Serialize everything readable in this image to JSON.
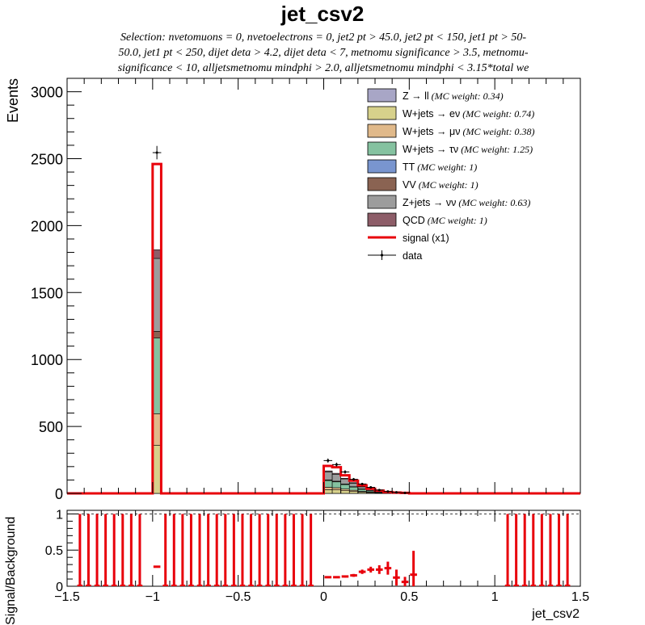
{
  "title": "jet_csv2",
  "selection_lines": [
    "Selection: nvetomuons = 0, nvetoelectrons = 0, jet2 pt > 45.0, jet2 pt < 150, jet1 pt > 50-",
    "50.0, jet1 pt < 250, dijet deta > 4.2, dijet deta < 7, metnomu significance > 3.5, metnomu-",
    "significance < 10, alljetsmetnomu mindphi > 2.0, alljetsmetnomu mindphi < 3.15*total we"
  ],
  "colors": {
    "signal": "#e8000b",
    "data": "#000000",
    "Zll": "#a8a6c6",
    "Wenu": "#d7d18b",
    "Wmunu": "#e0b98a",
    "Wtaunu": "#85c2a0",
    "TT": "#7995cf",
    "VV": "#8a6352",
    "Znunu": "#9c9c9c",
    "QCD": "#8d5d68"
  },
  "chart_data": [
    {
      "type": "bar",
      "stacked": true,
      "xlabel": "jet_csv2",
      "ylabel": "Events",
      "xlim": [
        -1.5,
        1.5
      ],
      "ylim": [
        0,
        3100
      ],
      "x_ticks": [
        "−1.5",
        "−1",
        "−0.5",
        "0",
        "0.5",
        "1",
        "1.5"
      ],
      "y_ticks": [
        "0",
        "500",
        "1000",
        "1500",
        "2000",
        "2500",
        "3000"
      ],
      "bin_width": 0.05,
      "legend_position": "top-right",
      "legend": [
        {
          "key": "Zll",
          "label": "Z → ll",
          "note": "(MC weight: 0.34)",
          "kind": "fill"
        },
        {
          "key": "Wenu",
          "label": "W+jets → eν",
          "note": "(MC weight: 0.74)",
          "kind": "fill"
        },
        {
          "key": "Wmunu",
          "label": "W+jets → μν",
          "note": "(MC weight: 0.38)",
          "kind": "fill"
        },
        {
          "key": "Wtaunu",
          "label": "W+jets → τν",
          "note": "(MC weight: 1.25)",
          "kind": "fill"
        },
        {
          "key": "TT",
          "label": "TT",
          "note": "(MC weight: 1)",
          "kind": "fill"
        },
        {
          "key": "VV",
          "label": "VV",
          "note": "(MC weight: 1)",
          "kind": "fill"
        },
        {
          "key": "Znunu",
          "label": "Z+jets → νν",
          "note": "(MC weight: 0.63)",
          "kind": "fill"
        },
        {
          "key": "QCD",
          "label": "QCD",
          "note": "(MC weight: 1)",
          "kind": "fill"
        },
        {
          "key": "signal",
          "label": "signal (x1)",
          "note": "",
          "kind": "line"
        },
        {
          "key": "data",
          "label": "data",
          "note": "",
          "kind": "marker"
        }
      ],
      "stack_order": [
        "Zll",
        "Wenu",
        "Wmunu",
        "Wtaunu",
        "TT",
        "VV",
        "Znunu",
        "QCD"
      ],
      "stack_bins": [
        {
          "x0": -1.0,
          "Zll": 0,
          "Wenu": 360,
          "Wmunu": 235,
          "Wtaunu": 565,
          "TT": 0,
          "VV": 50,
          "Znunu": 545,
          "QCD": 65
        },
        {
          "x0": 0.0,
          "Zll": 0,
          "Wenu": 28,
          "Wmunu": 18,
          "Wtaunu": 50,
          "TT": 0,
          "VV": 5,
          "Znunu": 60,
          "QCD": 7
        },
        {
          "x0": 0.05,
          "Zll": 0,
          "Wenu": 26,
          "Wmunu": 16,
          "Wtaunu": 44,
          "TT": 0,
          "VV": 5,
          "Znunu": 52,
          "QCD": 7
        },
        {
          "x0": 0.1,
          "Zll": 0,
          "Wenu": 20,
          "Wmunu": 12,
          "Wtaunu": 34,
          "TT": 0,
          "VV": 4,
          "Znunu": 38,
          "QCD": 5
        },
        {
          "x0": 0.15,
          "Zll": 0,
          "Wenu": 14,
          "Wmunu": 9,
          "Wtaunu": 24,
          "TT": 0,
          "VV": 3,
          "Znunu": 26,
          "QCD": 4
        },
        {
          "x0": 0.2,
          "Zll": 0,
          "Wenu": 9,
          "Wmunu": 6,
          "Wtaunu": 16,
          "TT": 0,
          "VV": 2,
          "Znunu": 16,
          "QCD": 3
        },
        {
          "x0": 0.25,
          "Zll": 0,
          "Wenu": 6,
          "Wmunu": 4,
          "Wtaunu": 10,
          "TT": 0,
          "VV": 1,
          "Znunu": 10,
          "QCD": 2
        },
        {
          "x0": 0.3,
          "Zll": 0,
          "Wenu": 4,
          "Wmunu": 2,
          "Wtaunu": 6,
          "TT": 0,
          "VV": 1,
          "Znunu": 6,
          "QCD": 1
        },
        {
          "x0": 0.35,
          "Zll": 0,
          "Wenu": 2,
          "Wmunu": 1,
          "Wtaunu": 3,
          "TT": 0,
          "VV": 0,
          "Znunu": 3,
          "QCD": 1
        },
        {
          "x0": 0.4,
          "Zll": 0,
          "Wenu": 1,
          "Wmunu": 1,
          "Wtaunu": 2,
          "TT": 0,
          "VV": 0,
          "Znunu": 2,
          "QCD": 0
        },
        {
          "x0": 0.45,
          "Zll": 0,
          "Wenu": 1,
          "Wmunu": 0,
          "Wtaunu": 1,
          "TT": 0,
          "VV": 0,
          "Znunu": 1,
          "QCD": 0
        }
      ],
      "signal_bins": [
        {
          "x0": -1.0,
          "value": 2460
        },
        {
          "x0": 0.0,
          "value": 205
        },
        {
          "x0": 0.05,
          "value": 195
        },
        {
          "x0": 0.1,
          "value": 135
        },
        {
          "x0": 0.15,
          "value": 95
        },
        {
          "x0": 0.2,
          "value": 60
        },
        {
          "x0": 0.25,
          "value": 35
        },
        {
          "x0": 0.3,
          "value": 20
        },
        {
          "x0": 0.35,
          "value": 10
        },
        {
          "x0": 0.4,
          "value": 6
        },
        {
          "x0": 0.45,
          "value": 4
        }
      ],
      "data_points": [
        {
          "x": -0.975,
          "y": 2545,
          "err": 50
        },
        {
          "x": 0.025,
          "y": 245,
          "err": 16
        },
        {
          "x": 0.075,
          "y": 215,
          "err": 15
        },
        {
          "x": 0.125,
          "y": 160,
          "err": 13
        },
        {
          "x": 0.175,
          "y": 105,
          "err": 10
        },
        {
          "x": 0.225,
          "y": 70,
          "err": 8
        },
        {
          "x": 0.275,
          "y": 45,
          "err": 7
        },
        {
          "x": 0.325,
          "y": 25,
          "err": 5
        },
        {
          "x": 0.375,
          "y": 14,
          "err": 4
        },
        {
          "x": 0.425,
          "y": 8,
          "err": 3
        },
        {
          "x": 0.475,
          "y": 4,
          "err": 2
        }
      ]
    },
    {
      "type": "scatter",
      "ylabel": "Signal/Background",
      "xlabel": "jet_csv2",
      "xlim": [
        -1.5,
        1.5
      ],
      "ylim": [
        0,
        1.05
      ],
      "x_ticks": [
        "−1.5",
        "−1",
        "−0.5",
        "0",
        "0.5",
        "1",
        "1.5"
      ],
      "y_ticks": [
        "0",
        "0.5",
        "1"
      ],
      "reference_line": 1,
      "full_error_bins_x0": [
        -1.45,
        -1.4,
        -1.35,
        -1.3,
        -1.25,
        -1.2,
        -1.15,
        -1.1,
        -0.95,
        -0.9,
        -0.85,
        -0.8,
        -0.75,
        -0.7,
        -0.65,
        -0.6,
        -0.55,
        -0.5,
        -0.45,
        -0.4,
        -0.35,
        -0.3,
        -0.25,
        -0.2,
        -0.15,
        -0.1,
        1.05,
        1.1,
        1.15,
        1.2,
        1.25,
        1.3,
        1.35,
        1.4
      ],
      "ratio_points": [
        {
          "x": -0.975,
          "y": 0.27,
          "err": 0.005
        },
        {
          "x": 0.025,
          "y": 0.125,
          "err": 0.01
        },
        {
          "x": 0.075,
          "y": 0.125,
          "err": 0.01
        },
        {
          "x": 0.125,
          "y": 0.135,
          "err": 0.015
        },
        {
          "x": 0.175,
          "y": 0.15,
          "err": 0.02
        },
        {
          "x": 0.225,
          "y": 0.2,
          "err": 0.03
        },
        {
          "x": 0.275,
          "y": 0.23,
          "err": 0.04
        },
        {
          "x": 0.325,
          "y": 0.23,
          "err": 0.06
        },
        {
          "x": 0.375,
          "y": 0.25,
          "err": 0.09
        },
        {
          "x": 0.425,
          "y": 0.12,
          "err": 0.11
        },
        {
          "x": 0.475,
          "y": 0.06,
          "err": 0.07
        },
        {
          "x": 0.525,
          "y": 0.16,
          "err": 0.33
        }
      ]
    }
  ]
}
